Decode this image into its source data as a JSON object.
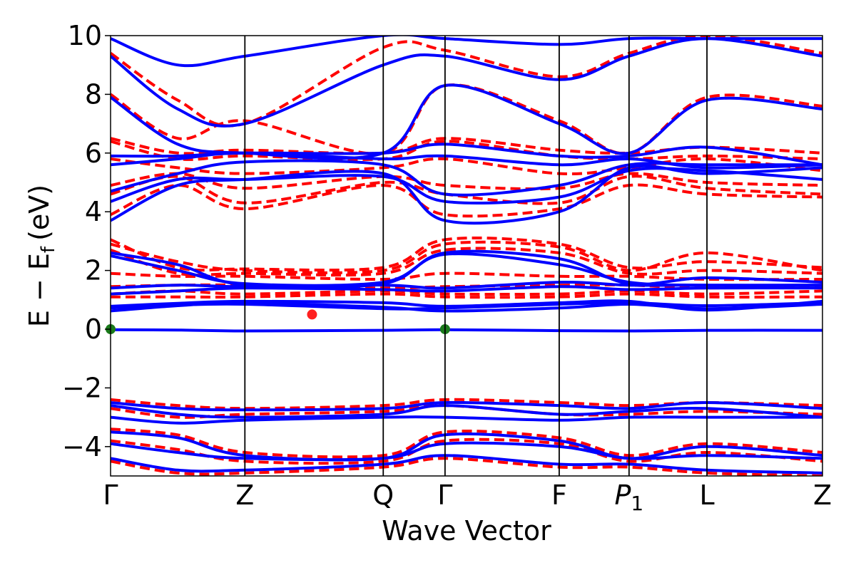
{
  "chart_data": {
    "type": "line",
    "title": "",
    "xlabel": "Wave Vector",
    "ylabel": "E − E",
    "ylabel_sub": "f",
    "ylabel_unit": "(eV)",
    "ylim": [
      -5,
      10
    ],
    "yticks": [
      {
        "value": 10,
        "label": "10"
      },
      {
        "value": 8,
        "label": "8"
      },
      {
        "value": 6,
        "label": "6"
      },
      {
        "value": 4,
        "label": "4"
      },
      {
        "value": 2,
        "label": "2"
      },
      {
        "value": 0,
        "label": "0"
      },
      {
        "value": -2,
        "label": "−2"
      },
      {
        "value": -4,
        "label": "−4"
      }
    ],
    "kpoints": [
      {
        "label": "Γ",
        "pos": 0.0
      },
      {
        "label": "Z",
        "pos": 1.0
      },
      {
        "label": "Q",
        "pos": 2.03
      },
      {
        "label": "Γ",
        "pos": 2.49
      },
      {
        "label": "F",
        "pos": 3.34
      },
      {
        "label": "P",
        "sub": "1",
        "italic": true,
        "pos": 3.86
      },
      {
        "label": "L",
        "pos": 4.44
      },
      {
        "label": "Z",
        "pos": 5.3
      }
    ],
    "series_styles": {
      "blue": {
        "color": "#0000ff",
        "dash": "solid"
      },
      "red": {
        "color": "#ff0000",
        "dash": "dashed"
      }
    },
    "markers": [
      {
        "x": 0.0,
        "y": 0.0,
        "color": "#1a7a1a"
      },
      {
        "x": 2.49,
        "y": 0.0,
        "color": "#1a7a1a"
      },
      {
        "x": 1.5,
        "y": 0.5,
        "color": "#ff2020"
      }
    ],
    "bands": [
      {
        "style": "blue",
        "y": [
          -0.02,
          -0.03,
          -0.06,
          -0.04,
          -0.02,
          -0.05,
          -0.06,
          -0.04,
          -0.04
        ],
        "x": [
          0,
          0.5,
          1.0,
          2.03,
          2.49,
          3.34,
          3.86,
          4.44,
          5.3
        ]
      },
      {
        "style": "blue",
        "y": [
          0.62,
          0.8,
          0.9,
          0.75,
          0.62,
          0.72,
          0.85,
          0.7,
          0.85
        ]
      },
      {
        "style": "blue",
        "y": [
          0.72,
          0.82,
          0.85,
          0.7,
          0.72,
          0.85,
          0.9,
          0.8,
          0.9
        ]
      },
      {
        "style": "blue",
        "y": [
          0.78,
          0.88,
          0.95,
          0.9,
          0.78,
          0.9,
          0.95,
          0.65,
          0.95
        ]
      },
      {
        "style": "blue",
        "y": [
          1.2,
          1.3,
          1.4,
          1.35,
          1.3,
          1.45,
          1.35,
          1.4,
          1.4
        ]
      },
      {
        "style": "blue",
        "y": [
          1.4,
          1.5,
          1.45,
          1.5,
          1.4,
          1.6,
          1.5,
          1.5,
          1.5
        ]
      },
      {
        "style": "blue",
        "y": [
          2.6,
          2.2,
          1.5,
          1.55,
          2.6,
          2.4,
          1.55,
          1.75,
          1.6
        ]
      },
      {
        "style": "blue",
        "y": [
          2.5,
          2.0,
          1.55,
          1.6,
          2.55,
          2.2,
          1.6,
          1.5,
          1.5
        ]
      },
      {
        "style": "blue",
        "y": [
          4.35,
          5.1,
          5.1,
          5.2,
          4.35,
          4.5,
          5.4,
          5.4,
          5.1
        ]
      },
      {
        "style": "blue",
        "y": [
          3.7,
          4.9,
          5.1,
          5.3,
          3.7,
          4.0,
          5.5,
          5.3,
          5.5
        ]
      },
      {
        "style": "blue",
        "y": [
          4.7,
          5.3,
          5.7,
          5.6,
          4.6,
          4.9,
          5.6,
          5.6,
          5.6
        ]
      },
      {
        "style": "blue",
        "y": [
          5.6,
          5.8,
          6.0,
          5.8,
          5.9,
          5.6,
          5.8,
          5.5,
          5.6
        ]
      },
      {
        "style": "blue",
        "y": [
          5.9,
          5.9,
          6.0,
          6.0,
          6.3,
          5.9,
          5.9,
          6.2,
          5.6
        ]
      },
      {
        "style": "blue",
        "y": [
          7.9,
          6.3,
          6.0,
          6.0,
          8.3,
          7.0,
          6.0,
          7.8,
          7.5
        ]
      },
      {
        "style": "blue",
        "y": [
          9.3,
          7.5,
          7.0,
          9.0,
          9.3,
          8.5,
          9.3,
          9.9,
          9.3
        ]
      },
      {
        "style": "blue",
        "y": [
          9.9,
          9.0,
          9.3,
          10.0,
          9.9,
          9.7,
          9.9,
          9.9,
          9.9
        ]
      },
      {
        "style": "blue",
        "y": [
          -2.5,
          -2.7,
          -2.75,
          -2.7,
          -2.5,
          -2.6,
          -2.7,
          -2.5,
          -2.7
        ]
      },
      {
        "style": "blue",
        "y": [
          -2.6,
          -2.9,
          -3.0,
          -2.9,
          -2.6,
          -2.9,
          -2.8,
          -2.7,
          -3.0
        ]
      },
      {
        "style": "blue",
        "y": [
          -3.0,
          -3.2,
          -3.1,
          -3.0,
          -3.0,
          -3.1,
          -3.0,
          -3.0,
          -3.0
        ]
      },
      {
        "style": "blue",
        "y": [
          -3.5,
          -3.7,
          -4.3,
          -4.4,
          -3.6,
          -3.8,
          -4.4,
          -4.0,
          -4.3
        ]
      },
      {
        "style": "blue",
        "y": [
          -3.9,
          -4.2,
          -4.4,
          -4.4,
          -3.9,
          -4.0,
          -4.4,
          -4.3,
          -4.4
        ]
      },
      {
        "style": "blue",
        "y": [
          -4.4,
          -4.8,
          -4.8,
          -4.6,
          -4.3,
          -4.6,
          -4.6,
          -4.8,
          -4.9
        ]
      },
      {
        "style": "red",
        "y": [
          3.05,
          2.1,
          2.05,
          2.1,
          3.05,
          2.9,
          2.1,
          2.3,
          2.1
        ]
      },
      {
        "style": "red",
        "y": [
          2.9,
          2.3,
          2.0,
          2.0,
          2.9,
          2.8,
          2.0,
          2.6,
          2.0
        ]
      },
      {
        "style": "red",
        "y": [
          2.7,
          1.9,
          1.9,
          1.9,
          2.7,
          2.6,
          1.9,
          2.0,
          1.9
        ]
      },
      {
        "style": "red",
        "y": [
          1.9,
          1.8,
          1.8,
          1.7,
          1.9,
          1.8,
          1.8,
          1.7,
          1.7
        ]
      },
      {
        "style": "red",
        "y": [
          1.45,
          1.5,
          1.5,
          1.4,
          1.45,
          1.5,
          1.5,
          1.4,
          1.5
        ]
      },
      {
        "style": "red",
        "y": [
          1.2,
          1.3,
          1.2,
          1.3,
          1.2,
          1.2,
          1.3,
          1.2,
          1.3
        ]
      },
      {
        "style": "red",
        "y": [
          1.1,
          1.1,
          1.1,
          1.2,
          1.1,
          1.1,
          1.2,
          1.1,
          1.1
        ]
      },
      {
        "style": "red",
        "y": [
          6.5,
          6.0,
          6.1,
          6.0,
          6.5,
          6.1,
          6.0,
          6.2,
          6.0
        ]
      },
      {
        "style": "red",
        "y": [
          6.4,
          5.8,
          5.9,
          5.8,
          6.4,
          5.9,
          5.8,
          5.9,
          5.8
        ]
      },
      {
        "style": "red",
        "y": [
          5.8,
          5.5,
          5.3,
          5.5,
          5.8,
          5.3,
          5.5,
          5.8,
          5.4
        ]
      },
      {
        "style": "red",
        "y": [
          4.9,
          5.3,
          4.8,
          5.2,
          4.9,
          4.8,
          5.3,
          5.0,
          4.9
        ]
      },
      {
        "style": "red",
        "y": [
          4.6,
          5.2,
          4.3,
          5.0,
          4.6,
          4.3,
          5.2,
          4.8,
          4.6
        ]
      },
      {
        "style": "red",
        "y": [
          3.9,
          4.9,
          4.1,
          4.9,
          3.9,
          4.1,
          4.9,
          4.6,
          4.5
        ]
      },
      {
        "style": "red",
        "y": [
          8.0,
          6.5,
          7.1,
          6.0,
          8.3,
          7.1,
          6.0,
          7.9,
          7.6
        ]
      },
      {
        "style": "red",
        "y": [
          9.4,
          7.8,
          7.0,
          9.6,
          9.5,
          8.6,
          9.4,
          10.0,
          9.4
        ]
      },
      {
        "style": "red",
        "y": [
          -2.4,
          -2.6,
          -2.7,
          -2.6,
          -2.4,
          -2.5,
          -2.6,
          -2.5,
          -2.6
        ]
      },
      {
        "style": "red",
        "y": [
          -2.7,
          -3.0,
          -2.9,
          -2.8,
          -2.6,
          -2.9,
          -2.9,
          -2.8,
          -2.9
        ]
      },
      {
        "style": "red",
        "y": [
          -3.4,
          -3.6,
          -4.2,
          -4.3,
          -3.5,
          -3.7,
          -4.3,
          -3.9,
          -4.2
        ]
      },
      {
        "style": "red",
        "y": [
          -3.8,
          -4.1,
          -4.5,
          -4.5,
          -3.8,
          -3.9,
          -4.5,
          -4.2,
          -4.5
        ]
      },
      {
        "style": "red",
        "y": [
          -4.5,
          -4.9,
          -4.9,
          -4.7,
          -4.4,
          -4.7,
          -4.7,
          -4.9,
          -5.0
        ]
      }
    ]
  }
}
